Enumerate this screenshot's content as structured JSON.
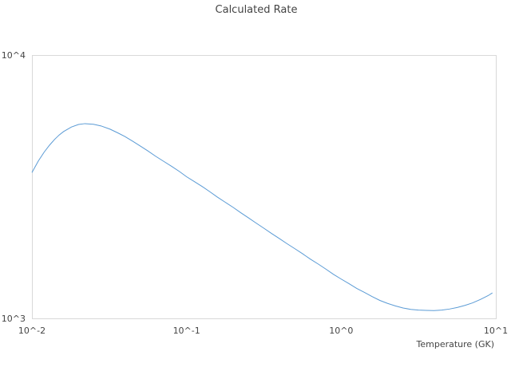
{
  "chart_data": {
    "type": "line",
    "title": "Calculated Rate",
    "xlabel": "Temperature (GK)",
    "ylabel": "",
    "xscale": "log",
    "yscale": "log",
    "xlim": [
      0.01,
      10
    ],
    "ylim": [
      1000,
      10000
    ],
    "x_ticks": [
      {
        "value": 0.01,
        "label": "10^-2"
      },
      {
        "value": 0.1,
        "label": "10^-1"
      },
      {
        "value": 1,
        "label": "10^0"
      },
      {
        "value": 10,
        "label": "10^1"
      }
    ],
    "y_ticks": [
      {
        "value": 1000,
        "label": "10^3"
      },
      {
        "value": 10000,
        "label": "10^4"
      }
    ],
    "grid": false,
    "line_color": "#5b9bd5",
    "series": [
      {
        "name": "",
        "x": [
          0.01,
          0.011,
          0.012,
          0.013,
          0.014,
          0.015,
          0.016,
          0.018,
          0.02,
          0.022,
          0.025,
          0.028,
          0.032,
          0.036,
          0.04,
          0.045,
          0.05,
          0.056,
          0.063,
          0.071,
          0.08,
          0.09,
          0.1,
          0.112,
          0.126,
          0.141,
          0.158,
          0.178,
          0.2,
          0.224,
          0.251,
          0.282,
          0.316,
          0.355,
          0.398,
          0.447,
          0.501,
          0.562,
          0.631,
          0.708,
          0.794,
          0.891,
          1.0,
          1.122,
          1.259,
          1.413,
          1.585,
          1.778,
          1.995,
          2.239,
          2.512,
          2.818,
          3.162,
          3.548,
          3.981,
          4.467,
          5.012,
          5.623,
          6.31,
          7.079,
          7.943,
          8.913,
          9.5
        ],
        "y": [
          3580,
          3960,
          4280,
          4550,
          4780,
          4970,
          5120,
          5330,
          5450,
          5490,
          5460,
          5380,
          5230,
          5060,
          4900,
          4700,
          4520,
          4330,
          4130,
          3950,
          3780,
          3610,
          3450,
          3310,
          3170,
          3030,
          2890,
          2760,
          2640,
          2520,
          2410,
          2300,
          2200,
          2100,
          2010,
          1920,
          1840,
          1760,
          1680,
          1610,
          1540,
          1470,
          1410,
          1355,
          1300,
          1255,
          1210,
          1170,
          1140,
          1115,
          1095,
          1082,
          1075,
          1072,
          1070,
          1075,
          1085,
          1100,
          1120,
          1145,
          1180,
          1220,
          1250
        ]
      }
    ]
  }
}
